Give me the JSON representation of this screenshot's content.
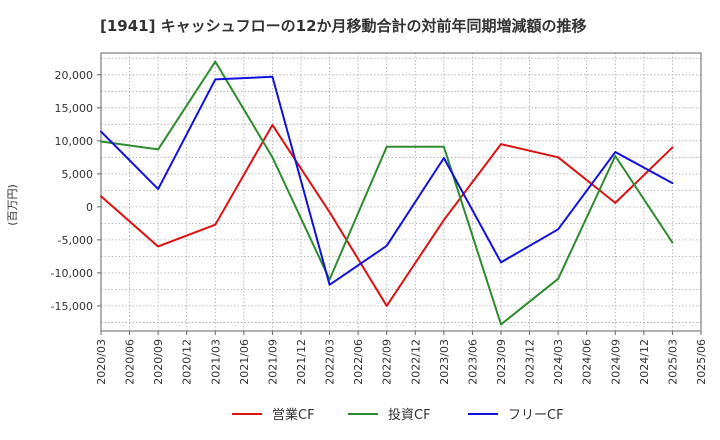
{
  "chart_data": {
    "type": "line",
    "title": "[1941]  キャッシュフローの12か月移動合計の対前年同期増減額の推移",
    "ylabel": "(百万円)",
    "xlabel": "",
    "ylim": [
      -18800,
      23300
    ],
    "yticks": [
      20000,
      15000,
      10000,
      5000,
      0,
      -5000,
      -10000,
      -15000
    ],
    "ytick_labels": [
      "20,000",
      "15,000",
      "10,000",
      "5,000",
      "0",
      "-5,000",
      "-10,000",
      "-15,000"
    ],
    "categories": [
      "2020/03",
      "2020/06",
      "2020/09",
      "2020/12",
      "2021/03",
      "2021/06",
      "2021/09",
      "2021/12",
      "2022/03",
      "2022/06",
      "2022/09",
      "2022/12",
      "2023/03",
      "2023/06",
      "2023/09",
      "2023/12",
      "2024/03",
      "2024/06",
      "2024/09",
      "2024/12",
      "2025/03",
      "2025/06"
    ],
    "grid": true,
    "legend_position": "bottom",
    "series": [
      {
        "name": "営業CF",
        "color": "#dd1111",
        "points": [
          {
            "x": "2020/03",
            "y": 1600
          },
          {
            "x": "2020/09",
            "y": -6000
          },
          {
            "x": "2021/03",
            "y": -2700
          },
          {
            "x": "2021/09",
            "y": 12400
          },
          {
            "x": "2022/03",
            "y": -800
          },
          {
            "x": "2022/09",
            "y": -15000
          },
          {
            "x": "2023/03",
            "y": -2000
          },
          {
            "x": "2023/09",
            "y": 9500
          },
          {
            "x": "2024/03",
            "y": 7500
          },
          {
            "x": "2024/09",
            "y": 600
          },
          {
            "x": "2025/03",
            "y": 9000
          }
        ]
      },
      {
        "name": "投資CF",
        "color": "#2e8b2e",
        "points": [
          {
            "x": "2020/03",
            "y": 9900
          },
          {
            "x": "2020/09",
            "y": 8700
          },
          {
            "x": "2021/03",
            "y": 22000
          },
          {
            "x": "2021/09",
            "y": 7500
          },
          {
            "x": "2022/03",
            "y": -11000
          },
          {
            "x": "2022/09",
            "y": 9100
          },
          {
            "x": "2023/03",
            "y": 9100
          },
          {
            "x": "2023/09",
            "y": -17800
          },
          {
            "x": "2024/03",
            "y": -10900
          },
          {
            "x": "2024/09",
            "y": 7700
          },
          {
            "x": "2025/03",
            "y": -5400
          }
        ]
      },
      {
        "name": "フリーCF",
        "color": "#1111dd",
        "points": [
          {
            "x": "2020/03",
            "y": 11400
          },
          {
            "x": "2020/09",
            "y": 2700
          },
          {
            "x": "2021/03",
            "y": 19300
          },
          {
            "x": "2021/09",
            "y": 19700
          },
          {
            "x": "2022/03",
            "y": -11800
          },
          {
            "x": "2022/09",
            "y": -5900
          },
          {
            "x": "2023/03",
            "y": 7400
          },
          {
            "x": "2023/09",
            "y": -8400
          },
          {
            "x": "2024/03",
            "y": -3400
          },
          {
            "x": "2024/09",
            "y": 8300
          },
          {
            "x": "2025/03",
            "y": 3600
          }
        ]
      }
    ]
  }
}
